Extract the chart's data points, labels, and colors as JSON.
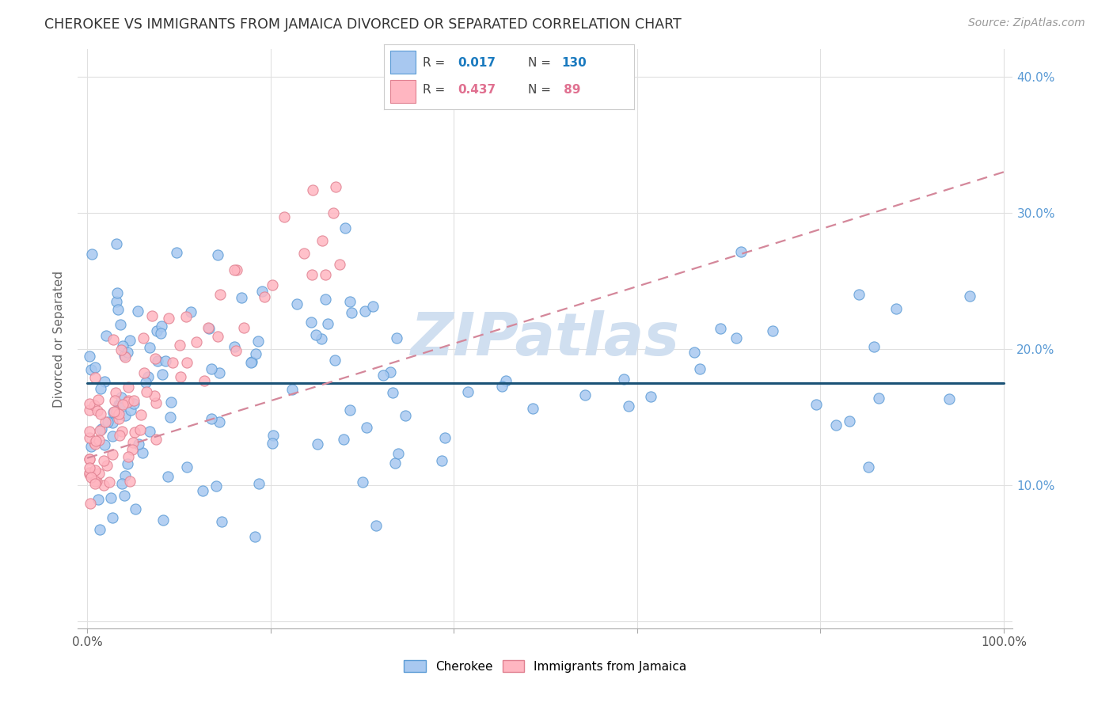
{
  "title": "CHEROKEE VS IMMIGRANTS FROM JAMAICA DIVORCED OR SEPARATED CORRELATION CHART",
  "source": "Source: ZipAtlas.com",
  "ylabel": "Divorced or Separated",
  "cherokee_color": "#a8c8f0",
  "cherokee_edge": "#5b9bd5",
  "jamaica_color": "#ffb6c1",
  "jamaica_edge": "#e08090",
  "trendline_cherokee_color": "#1a5276",
  "trendline_jamaica_color": "#d4879a",
  "watermark_color": "#d0dff0",
  "legend_cherokee_label": "Cherokee",
  "legend_jamaica_label": "Immigrants from Jamaica",
  "cherokee_R": "0.017",
  "cherokee_N": "130",
  "jamaica_R": "0.437",
  "jamaica_N": " 89",
  "background_color": "#ffffff",
  "grid_color": "#e0e0e0",
  "xlim": [
    0.0,
    1.0
  ],
  "ylim": [
    -0.005,
    0.42
  ],
  "cherokee_trendline_y0": 0.175,
  "cherokee_trendline_y1": 0.175,
  "jamaica_trendline_x0": 0.0,
  "jamaica_trendline_x1": 1.0,
  "jamaica_trendline_y0": 0.12,
  "jamaica_trendline_y1": 0.33
}
